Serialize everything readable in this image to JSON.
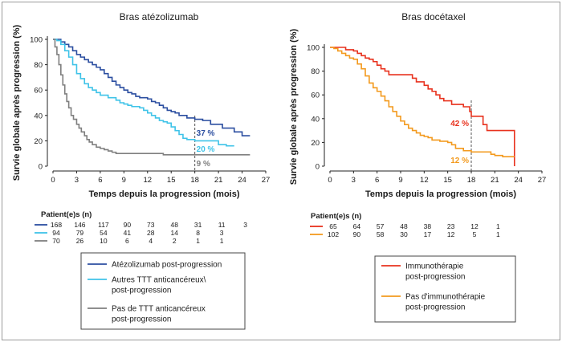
{
  "chart_data": [
    {
      "type": "line",
      "title": "Bras atézolizumab",
      "xlabel": "Temps depuis la progression (mois)",
      "ylabel": "Survie globale après progression (%)",
      "xlim": [
        0,
        27
      ],
      "ylim": [
        0,
        100
      ],
      "xticks": [
        "0",
        "3",
        "6",
        "9",
        "12",
        "15",
        "18",
        "21",
        "24",
        "27"
      ],
      "yticks": [
        "0",
        "20",
        "40",
        "60",
        "80",
        "100"
      ],
      "reference_month": 18,
      "risk_table_title": "Patient(e)s (n)",
      "legend": [
        {
          "text": "Atézolizumab post-progression",
          "color": "#2b4ea0"
        },
        {
          "text": "Autres TTT anticancéreux\\ post-progression",
          "color": "#3fc3e8"
        },
        {
          "text": "Pas de TTT anticancéreux post-progression",
          "color": "#7f7f7f"
        }
      ],
      "series": [
        {
          "name": "Atézolizumab post-progression",
          "color": "#2b4ea0",
          "value_at_18": "37 %",
          "at_risk": [
            "168",
            "146",
            "117",
            "90",
            "73",
            "48",
            "31",
            "11",
            "3"
          ],
          "points": [
            [
              0,
              100
            ],
            [
              0.5,
              100
            ],
            [
              1,
              98
            ],
            [
              1.5,
              96
            ],
            [
              2,
              94
            ],
            [
              2.5,
              91
            ],
            [
              3,
              88
            ],
            [
              3.5,
              86
            ],
            [
              4,
              84
            ],
            [
              4.5,
              82
            ],
            [
              5,
              80
            ],
            [
              5.5,
              78
            ],
            [
              6,
              76
            ],
            [
              6.5,
              73
            ],
            [
              7,
              70
            ],
            [
              7.5,
              67
            ],
            [
              8,
              64
            ],
            [
              8.5,
              62
            ],
            [
              9,
              60
            ],
            [
              9.5,
              58
            ],
            [
              10,
              57
            ],
            [
              10.5,
              55
            ],
            [
              11,
              54
            ],
            [
              12,
              53
            ],
            [
              12.5,
              51
            ],
            [
              13,
              50
            ],
            [
              13.5,
              48
            ],
            [
              14,
              46
            ],
            [
              14.5,
              44
            ],
            [
              15,
              43
            ],
            [
              15.5,
              42
            ],
            [
              16,
              40
            ],
            [
              17,
              38
            ],
            [
              18,
              37
            ],
            [
              19,
              36
            ],
            [
              20,
              33
            ],
            [
              21,
              33
            ],
            [
              21.5,
              30
            ],
            [
              22,
              30
            ],
            [
              23,
              27
            ],
            [
              23.5,
              27
            ],
            [
              24,
              24
            ],
            [
              25,
              24
            ]
          ]
        },
        {
          "name": "Autres TTT anticancéreux\\ post-progression",
          "color": "#3fc3e8",
          "value_at_18": "20 %",
          "at_risk": [
            "94",
            "79",
            "54",
            "41",
            "28",
            "14",
            "8",
            "3"
          ],
          "points": [
            [
              0,
              100
            ],
            [
              0.5,
              99
            ],
            [
              1,
              96
            ],
            [
              1.5,
              91
            ],
            [
              2,
              86
            ],
            [
              2.5,
              80
            ],
            [
              3,
              73
            ],
            [
              3.5,
              69
            ],
            [
              4,
              65
            ],
            [
              4.5,
              62
            ],
            [
              5,
              60
            ],
            [
              5.5,
              58
            ],
            [
              6,
              56
            ],
            [
              7,
              54
            ],
            [
              8,
              52
            ],
            [
              8.5,
              50
            ],
            [
              9,
              49
            ],
            [
              9.5,
              48
            ],
            [
              10,
              47
            ],
            [
              11,
              46
            ],
            [
              11.5,
              44
            ],
            [
              12,
              42
            ],
            [
              12.5,
              40
            ],
            [
              13,
              38
            ],
            [
              13.5,
              36
            ],
            [
              14,
              35
            ],
            [
              14.5,
              34
            ],
            [
              15,
              31
            ],
            [
              15.5,
              28
            ],
            [
              16,
              25
            ],
            [
              16.5,
              22
            ],
            [
              17,
              21
            ],
            [
              18,
              20
            ],
            [
              19,
              20
            ],
            [
              20,
              20
            ],
            [
              21,
              17
            ],
            [
              22,
              16
            ],
            [
              23,
              16
            ]
          ]
        },
        {
          "name": "Pas de TTT anticancéreux post-progression",
          "color": "#7f7f7f",
          "value_at_18": "9 %",
          "at_risk": [
            "70",
            "26",
            "10",
            "6",
            "4",
            "2",
            "1",
            "1"
          ],
          "points": [
            [
              0,
              100
            ],
            [
              0.25,
              94
            ],
            [
              0.5,
              88
            ],
            [
              0.75,
              80
            ],
            [
              1,
              72
            ],
            [
              1.25,
              64
            ],
            [
              1.5,
              57
            ],
            [
              1.75,
              51
            ],
            [
              2,
              46
            ],
            [
              2.3,
              40
            ],
            [
              2.6,
              37
            ],
            [
              3,
              33
            ],
            [
              3.3,
              30
            ],
            [
              3.6,
              27
            ],
            [
              4,
              24
            ],
            [
              4.3,
              21
            ],
            [
              4.6,
              19
            ],
            [
              5,
              17
            ],
            [
              5.5,
              15
            ],
            [
              6,
              14
            ],
            [
              6.5,
              13
            ],
            [
              7,
              12
            ],
            [
              7.5,
              11
            ],
            [
              8,
              10
            ],
            [
              9,
              10
            ],
            [
              10,
              10
            ],
            [
              12,
              10
            ],
            [
              14,
              9
            ],
            [
              16,
              9
            ],
            [
              17,
              9
            ],
            [
              18,
              9
            ],
            [
              20,
              9
            ],
            [
              22,
              9
            ],
            [
              24,
              9
            ],
            [
              25,
              9
            ]
          ]
        }
      ]
    },
    {
      "type": "line",
      "title": "Bras docétaxel",
      "xlabel": "Temps depuis la progression (mois)",
      "ylabel": "Survie globale après progression (%)",
      "xlim": [
        0,
        27
      ],
      "ylim": [
        0,
        100
      ],
      "xticks": [
        "0",
        "3",
        "6",
        "9",
        "12",
        "15",
        "18",
        "21",
        "24",
        "27"
      ],
      "yticks": [
        "0",
        "20",
        "40",
        "60",
        "80",
        "100"
      ],
      "reference_month": 18,
      "risk_table_title": "Patient(e)s (n)",
      "legend": [
        {
          "text": "Immunothérapie post-progression",
          "color": "#e8321e"
        },
        {
          "text": "Pas d'immunothérapie post-progression",
          "color": "#f39a1e"
        }
      ],
      "series": [
        {
          "name": "Immunothérapie post-progression",
          "color": "#e8321e",
          "value_at_18": "42 %",
          "at_risk": [
            "65",
            "64",
            "57",
            "48",
            "38",
            "23",
            "12",
            "1"
          ],
          "points": [
            [
              0,
              100
            ],
            [
              1,
              100
            ],
            [
              2,
              98
            ],
            [
              3,
              97
            ],
            [
              3.5,
              95
            ],
            [
              4,
              93
            ],
            [
              4.5,
              91
            ],
            [
              5,
              90
            ],
            [
              5.5,
              88
            ],
            [
              6,
              85
            ],
            [
              6.5,
              82
            ],
            [
              7,
              80
            ],
            [
              7.5,
              77
            ],
            [
              8,
              77
            ],
            [
              9,
              77
            ],
            [
              10,
              77
            ],
            [
              10.5,
              74
            ],
            [
              11,
              71
            ],
            [
              11.5,
              71
            ],
            [
              12,
              68
            ],
            [
              12.5,
              65
            ],
            [
              13,
              63
            ],
            [
              13.5,
              60
            ],
            [
              14,
              57
            ],
            [
              14.5,
              55
            ],
            [
              15,
              55
            ],
            [
              15.5,
              52
            ],
            [
              16,
              52
            ],
            [
              17,
              50
            ],
            [
              17.5,
              50
            ],
            [
              17.8,
              46
            ],
            [
              18,
              42
            ],
            [
              18.5,
              42
            ],
            [
              19,
              42
            ],
            [
              19.5,
              35
            ],
            [
              20,
              30
            ],
            [
              21,
              30
            ],
            [
              22,
              30
            ],
            [
              23,
              30
            ],
            [
              23.5,
              30
            ],
            [
              23.5,
              0
            ]
          ]
        },
        {
          "name": "Pas d'immunothérapie post-progression",
          "color": "#f39a1e",
          "value_at_18": "12 %",
          "at_risk": [
            "102",
            "90",
            "58",
            "30",
            "17",
            "12",
            "5",
            "1"
          ],
          "points": [
            [
              0,
              100
            ],
            [
              0.5,
              99
            ],
            [
              1,
              97
            ],
            [
              1.5,
              95
            ],
            [
              2,
              93
            ],
            [
              2.5,
              91
            ],
            [
              3,
              90
            ],
            [
              3.5,
              86
            ],
            [
              4,
              82
            ],
            [
              4.5,
              76
            ],
            [
              5,
              70
            ],
            [
              5.5,
              66
            ],
            [
              6,
              63
            ],
            [
              6.5,
              59
            ],
            [
              7,
              55
            ],
            [
              7.5,
              50
            ],
            [
              8,
              46
            ],
            [
              8.5,
              42
            ],
            [
              9,
              38
            ],
            [
              9.5,
              35
            ],
            [
              10,
              32
            ],
            [
              10.5,
              30
            ],
            [
              11,
              28
            ],
            [
              11.5,
              26
            ],
            [
              12,
              25
            ],
            [
              12.5,
              24
            ],
            [
              13,
              22
            ],
            [
              14,
              21
            ],
            [
              15,
              20
            ],
            [
              15.5,
              18
            ],
            [
              16,
              15
            ],
            [
              17,
              13
            ],
            [
              18,
              12
            ],
            [
              19,
              12
            ],
            [
              20,
              12
            ],
            [
              20.5,
              10
            ],
            [
              21,
              9
            ],
            [
              22,
              8
            ],
            [
              23,
              8
            ],
            [
              23.5,
              8
            ]
          ]
        }
      ]
    }
  ]
}
